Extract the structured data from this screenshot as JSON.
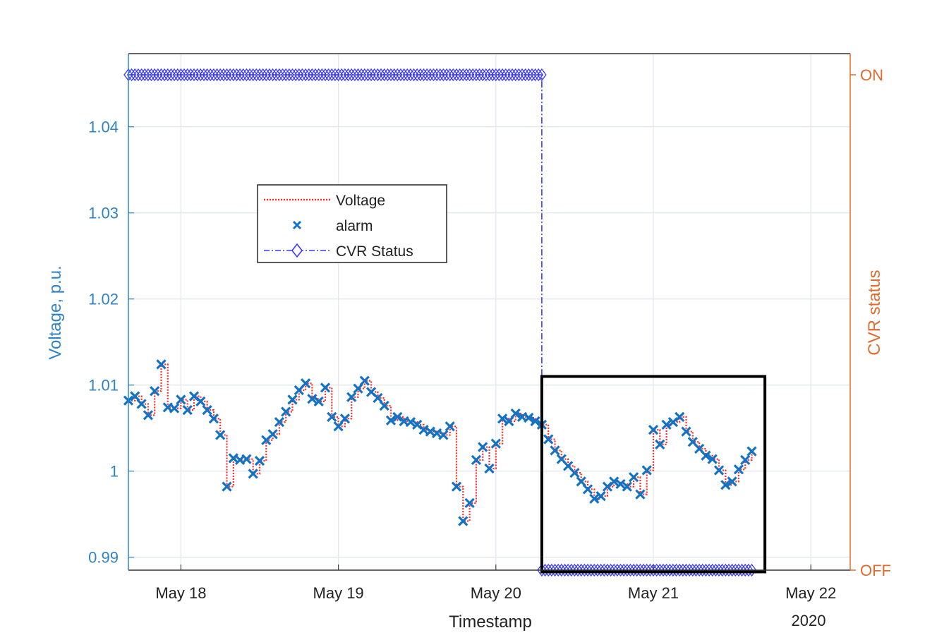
{
  "chart_data": {
    "type": "line",
    "xlabel": "Timestamp",
    "x_year_label": "2020",
    "ylabel_left": "Voltage, p.u.",
    "ylabel_right": "CVR status",
    "x_ticks": [
      "May 18",
      "May 19",
      "May 20",
      "May 21",
      "May 22"
    ],
    "xlim": [
      "2020-05-17 16:00",
      "2020-05-22 06:00"
    ],
    "y_left_ticks": [
      "0.99",
      "1",
      "1.01",
      "1.02",
      "1.03",
      "1.04"
    ],
    "ylim_left": [
      0.9885,
      1.0485
    ],
    "y_right_ticks": [
      "OFF",
      "ON"
    ],
    "grid": true,
    "legend_position": "upper-left, inside plot",
    "colors": {
      "left_axis": "#2f83c6",
      "right_axis": "#e06b2c",
      "voltage_line": "#ff2a2a",
      "alarm_marker": "#1273c6",
      "cvr_status": "#3a3aff"
    },
    "series": [
      {
        "name": "Voltage",
        "style": "dotted red line",
        "x": [
          "2020-05-17 16:00",
          "2020-05-17 17:00",
          "2020-05-17 18:00",
          "2020-05-17 19:00",
          "2020-05-17 20:00",
          "2020-05-17 21:00",
          "2020-05-17 22:00",
          "2020-05-17 23:00",
          "2020-05-18 00:00",
          "2020-05-18 01:00",
          "2020-05-18 02:00",
          "2020-05-18 03:00",
          "2020-05-18 04:00",
          "2020-05-18 05:00",
          "2020-05-18 06:00",
          "2020-05-18 07:00",
          "2020-05-18 08:00",
          "2020-05-18 09:00",
          "2020-05-18 10:00",
          "2020-05-18 11:00",
          "2020-05-18 12:00",
          "2020-05-18 13:00",
          "2020-05-18 14:00",
          "2020-05-18 15:00",
          "2020-05-18 16:00",
          "2020-05-18 17:00",
          "2020-05-18 18:00",
          "2020-05-18 19:00",
          "2020-05-18 20:00",
          "2020-05-18 21:00",
          "2020-05-18 22:00",
          "2020-05-18 23:00",
          "2020-05-19 00:00",
          "2020-05-19 01:00",
          "2020-05-19 02:00",
          "2020-05-19 03:00",
          "2020-05-19 04:00",
          "2020-05-19 05:00",
          "2020-05-19 06:00",
          "2020-05-19 07:00",
          "2020-05-19 08:00",
          "2020-05-19 09:00",
          "2020-05-19 10:00",
          "2020-05-19 11:00",
          "2020-05-19 12:00",
          "2020-05-19 13:00",
          "2020-05-19 14:00",
          "2020-05-19 15:00",
          "2020-05-19 16:00",
          "2020-05-19 17:00",
          "2020-05-19 18:00",
          "2020-05-19 19:00",
          "2020-05-19 20:00",
          "2020-05-19 21:00",
          "2020-05-19 22:00",
          "2020-05-19 23:00",
          "2020-05-20 00:00",
          "2020-05-20 01:00",
          "2020-05-20 02:00",
          "2020-05-20 03:00",
          "2020-05-20 04:00",
          "2020-05-20 05:00",
          "2020-05-20 06:00",
          "2020-05-20 07:00",
          "2020-05-20 08:00",
          "2020-05-20 09:00",
          "2020-05-20 10:00",
          "2020-05-20 11:00",
          "2020-05-20 12:00",
          "2020-05-20 13:00",
          "2020-05-20 14:00",
          "2020-05-20 15:00",
          "2020-05-20 16:00",
          "2020-05-20 17:00",
          "2020-05-20 18:00",
          "2020-05-20 19:00",
          "2020-05-20 20:00",
          "2020-05-20 21:00",
          "2020-05-20 22:00",
          "2020-05-20 23:00",
          "2020-05-21 00:00",
          "2020-05-21 01:00",
          "2020-05-21 02:00",
          "2020-05-21 03:00",
          "2020-05-21 04:00",
          "2020-05-21 05:00",
          "2020-05-21 06:00",
          "2020-05-21 07:00",
          "2020-05-21 08:00",
          "2020-05-21 09:00",
          "2020-05-21 10:00",
          "2020-05-21 11:00",
          "2020-05-21 12:00",
          "2020-05-21 13:00",
          "2020-05-21 14:00",
          "2020-05-21 15:00"
        ],
        "y": [
          1.0082,
          1.0087,
          1.0078,
          1.0065,
          1.0093,
          1.0124,
          1.0074,
          1.0073,
          1.0083,
          1.0071,
          1.0087,
          1.0081,
          1.0071,
          1.0061,
          1.0042,
          0.9982,
          1.0015,
          1.0013,
          1.0014,
          0.9997,
          1.0012,
          1.0036,
          1.0043,
          1.0057,
          1.0069,
          1.0083,
          1.0094,
          1.0102,
          1.0084,
          1.0081,
          1.0097,
          1.0063,
          1.0052,
          1.0061,
          1.0086,
          1.0096,
          1.0105,
          1.0092,
          1.0085,
          1.0076,
          1.0059,
          1.0063,
          1.0058,
          1.0057,
          1.0054,
          1.0048,
          1.0046,
          1.0044,
          1.0042,
          1.0052,
          0.9982,
          0.9942,
          0.9963,
          1.0013,
          1.0028,
          1.0003,
          1.0032,
          1.0061,
          1.0058,
          1.0067,
          1.0063,
          1.0062,
          1.0058,
          1.0054,
          1.0037,
          1.0024,
          1.0014,
          1.0006,
          0.9998,
          0.9988,
          0.9979,
          0.9968,
          0.9971,
          0.9982,
          0.9988,
          0.9985,
          0.9982,
          0.9993,
          0.9973,
          1.0001,
          1.0048,
          1.0031,
          1.0054,
          1.0057,
          1.0063,
          1.0046,
          1.0034,
          1.0026,
          1.0018,
          1.0014,
          1.0001,
          0.9984,
          0.9988,
          1.0002,
          1.0013,
          1.0023
        ]
      },
      {
        "name": "alarm",
        "style": "x markers, same values as Voltage"
      },
      {
        "name": "CVR Status",
        "style": "dash-dot blue line with diamond markers",
        "x": [
          "2020-05-17 16:00",
          "2020-05-20 07:00",
          "2020-05-20 07:00",
          "2020-05-21 15:00"
        ],
        "y": [
          "ON",
          "ON",
          "OFF",
          "OFF"
        ],
        "marker_spacing_hours": 0.5
      }
    ],
    "annotations": [
      {
        "type": "rectangle",
        "x_from": "2020-05-20 07:00",
        "x_to": "2020-05-21 17:00",
        "y_from": 0.9883,
        "y_to": 1.011,
        "color": "#000000"
      }
    ]
  }
}
